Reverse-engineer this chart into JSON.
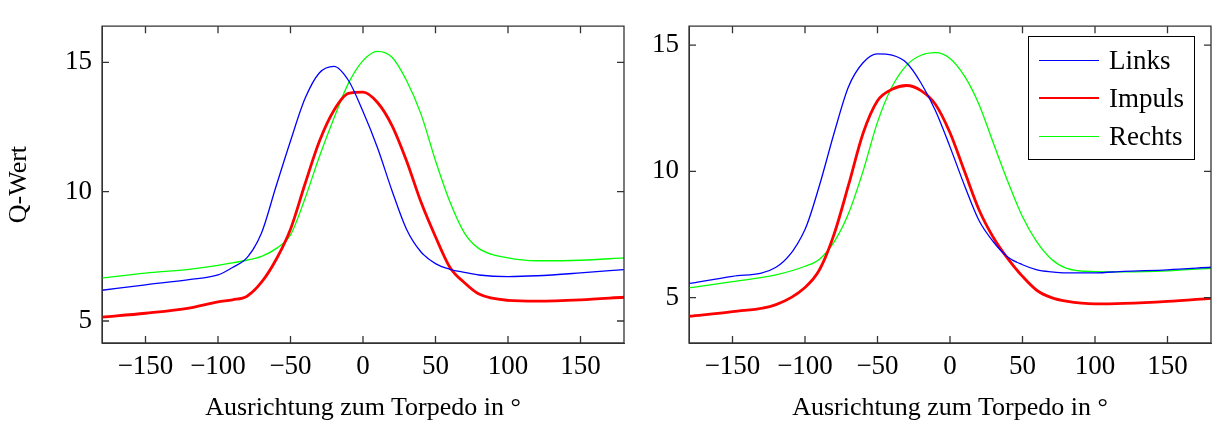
{
  "chart_data": [
    {
      "type": "line",
      "ylabel": "Q-Wert",
      "xlabel": "Ausrichtung zum Torpedo in °",
      "x": [
        -180,
        -150,
        -120,
        -100,
        -90,
        -80,
        -70,
        -60,
        -50,
        -40,
        -30,
        -20,
        -10,
        0,
        10,
        20,
        30,
        40,
        50,
        60,
        70,
        80,
        100,
        120,
        150,
        180
      ],
      "series": [
        {
          "color": "#0000ff",
          "values": [
            6.19,
            6.4,
            6.6,
            6.78,
            7.07,
            7.45,
            8.4,
            10.2,
            11.96,
            13.6,
            14.6,
            14.85,
            14.3,
            13.1,
            11.7,
            10.04,
            8.55,
            7.67,
            7.22,
            7.0,
            6.88,
            6.78,
            6.72,
            6.75,
            6.86,
            6.99
          ]
        },
        {
          "color": "#ff0000",
          "values": [
            5.15,
            5.3,
            5.5,
            5.74,
            5.82,
            5.96,
            6.5,
            7.37,
            8.55,
            10.3,
            11.96,
            13.15,
            13.8,
            13.85,
            13.45,
            12.56,
            11.2,
            9.6,
            8.26,
            7.07,
            6.48,
            6.04,
            5.8,
            5.77,
            5.82,
            5.92
          ]
        },
        {
          "color": "#00ff00",
          "values": [
            6.66,
            6.85,
            7.0,
            7.15,
            7.25,
            7.35,
            7.5,
            7.8,
            8.33,
            9.74,
            11.37,
            12.85,
            14.2,
            15.07,
            15.43,
            15.2,
            14.3,
            13.0,
            11.2,
            9.6,
            8.4,
            7.8,
            7.44,
            7.33,
            7.35,
            7.44
          ]
        }
      ],
      "xlim": [
        -180,
        180
      ],
      "xticks": [
        -150,
        -100,
        -50,
        0,
        50,
        100,
        150
      ],
      "ylim": [
        4.15,
        16.4
      ],
      "yticks": [
        5,
        10,
        15
      ],
      "marker": "none",
      "legend": false
    },
    {
      "type": "line",
      "xlabel": "Ausrichtung zum Torpedo in °",
      "x": [
        -180,
        -150,
        -120,
        -100,
        -90,
        -80,
        -70,
        -60,
        -50,
        -40,
        -30,
        -20,
        -10,
        0,
        10,
        20,
        30,
        40,
        50,
        60,
        70,
        80,
        100,
        120,
        150,
        180
      ],
      "series": [
        {
          "name": "Links",
          "color": "#0000ff",
          "values": [
            5.56,
            5.84,
            6.2,
            7.7,
            9.45,
            11.5,
            13.35,
            14.3,
            14.65,
            14.6,
            14.3,
            13.5,
            12.4,
            10.97,
            9.44,
            8.05,
            7.2,
            6.6,
            6.3,
            6.1,
            6.02,
            5.98,
            5.98,
            6.04,
            6.1,
            6.2
          ]
        },
        {
          "name": "Impuls",
          "color": "#ff0000",
          "values": [
            4.26,
            4.44,
            4.72,
            5.4,
            6.1,
            7.5,
            9.45,
            11.5,
            12.8,
            13.25,
            13.4,
            13.2,
            12.65,
            11.53,
            10.0,
            8.48,
            7.37,
            6.53,
            5.84,
            5.28,
            5.0,
            4.86,
            4.75,
            4.77,
            4.85,
            4.97
          ]
        },
        {
          "name": "Rechts",
          "color": "#00ff00",
          "values": [
            5.38,
            5.63,
            5.9,
            6.24,
            6.52,
            7.2,
            8.33,
            10.0,
            11.95,
            13.35,
            14.2,
            14.6,
            14.7,
            14.47,
            13.77,
            12.65,
            11.1,
            9.58,
            8.2,
            7.2,
            6.52,
            6.17,
            6.03,
            6.02,
            6.06,
            6.16
          ]
        }
      ],
      "xlim": [
        -180,
        180
      ],
      "xticks": [
        -150,
        -100,
        -50,
        0,
        50,
        100,
        150
      ],
      "ylim": [
        3.2,
        15.75
      ],
      "yticks": [
        5,
        10,
        15
      ],
      "marker": "none",
      "legend": "top right"
    }
  ]
}
